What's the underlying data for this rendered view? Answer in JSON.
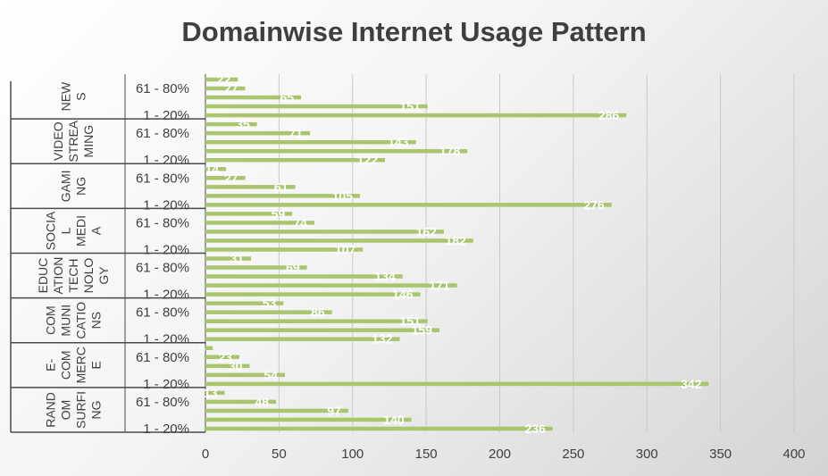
{
  "chart_data": {
    "type": "bar",
    "orientation": "horizontal",
    "title": "Domainwise Internet Usage Pattern",
    "xlim": [
      0,
      400
    ],
    "x_ticks": [
      0,
      50,
      100,
      150,
      200,
      250,
      300,
      350,
      400
    ],
    "grid": true,
    "bar_color": "#a9c56e",
    "axis_color": "#4a4a4a",
    "groups": [
      {
        "name": "NEWS",
        "label_lines": [
          "NEW",
          "S"
        ],
        "values": [
          22,
          27,
          65,
          151,
          286
        ],
        "category_labels": [
          "",
          "61 - 80%",
          "",
          "",
          "1 - 20%"
        ]
      },
      {
        "name": "VIDEO STREAMING",
        "label_lines": [
          "VIDEO",
          "STREA",
          "MING"
        ],
        "values": [
          35,
          71,
          143,
          178,
          122
        ],
        "category_labels": [
          "",
          "61 - 80%",
          "",
          "",
          "1 - 20%"
        ]
      },
      {
        "name": "GAMING",
        "label_lines": [
          "GAMI",
          "NG"
        ],
        "values": [
          14,
          27,
          61,
          105,
          276
        ],
        "category_labels": [
          "",
          "61 - 80%",
          "",
          "",
          "1 - 20%"
        ]
      },
      {
        "name": "SOCIAL MEDIA",
        "label_lines": [
          "SOCIA",
          "L",
          "MEDI",
          "A"
        ],
        "values": [
          59,
          74,
          162,
          182,
          107
        ],
        "category_labels": [
          "",
          "61 - 80%",
          "",
          "",
          "1 - 20%"
        ]
      },
      {
        "name": "EDUCATION TECHNOLOGY",
        "label_lines": [
          "EDUC",
          "ATION",
          "TECH",
          "NOLO",
          "GY"
        ],
        "values": [
          31,
          69,
          134,
          171,
          146
        ],
        "category_labels": [
          "",
          "61 - 80%",
          "",
          "",
          "1 - 20%"
        ]
      },
      {
        "name": "COMMUNICATIONS",
        "label_lines": [
          "COM",
          "MUNI",
          "CATIO",
          "NS"
        ],
        "values": [
          53,
          86,
          151,
          159,
          132
        ],
        "category_labels": [
          "",
          "61 - 80%",
          "",
          "",
          "1 - 20%"
        ]
      },
      {
        "name": "E-COMMERCE",
        "label_lines": [
          "E-",
          "COM",
          "MERC",
          "E"
        ],
        "values": [
          5,
          23,
          30,
          54,
          342
        ],
        "category_labels": [
          "",
          "61 - 80%",
          "",
          "",
          "1 - 20%"
        ]
      },
      {
        "name": "RANDOM SURFING",
        "label_lines": [
          "RAND",
          "OM",
          "SURFI",
          "NG"
        ],
        "values": [
          13,
          48,
          97,
          140,
          236
        ],
        "category_labels": [
          "",
          "61 - 80%",
          "",
          "",
          "1 - 20%"
        ]
      }
    ]
  }
}
